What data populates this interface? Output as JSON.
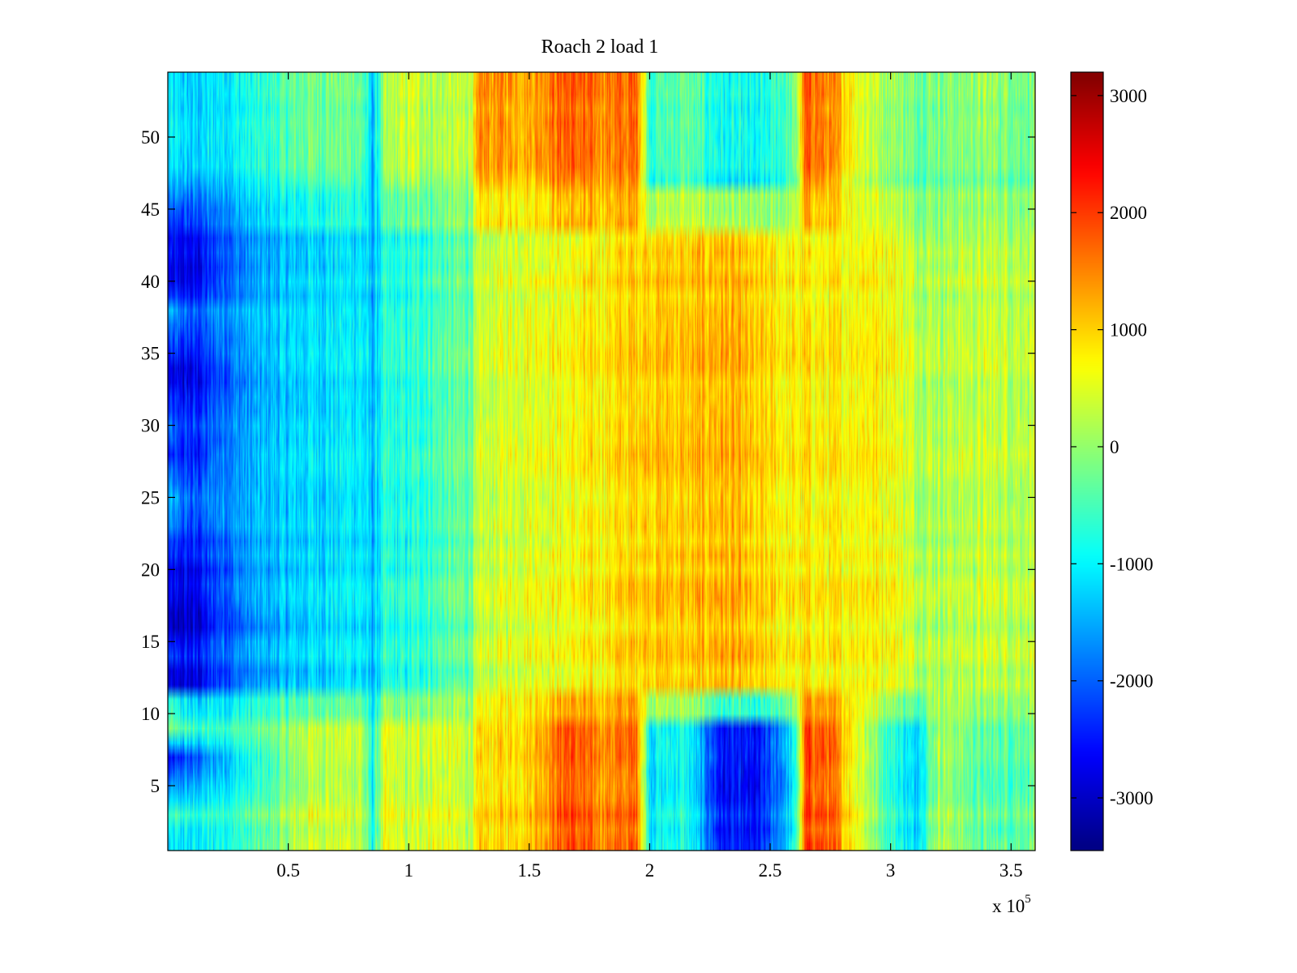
{
  "chart_data": {
    "type": "heatmap",
    "title": "Roach 2 load 1",
    "xlabel": "",
    "ylabel": "",
    "x_exponent_label": "x 10",
    "x_exponent": "5",
    "x_scale_factor": 100000,
    "xlim": [
      0,
      360000
    ],
    "ylim": [
      0.5,
      54.5
    ],
    "x_ticks": [
      50000,
      100000,
      150000,
      200000,
      250000,
      300000,
      350000
    ],
    "x_tick_labels": [
      "0.5",
      "1",
      "1.5",
      "2",
      "2.5",
      "3",
      "3.5"
    ],
    "y_ticks": [
      5,
      10,
      15,
      20,
      25,
      30,
      35,
      40,
      45,
      50
    ],
    "y_tick_labels": [
      "5",
      "10",
      "15",
      "20",
      "25",
      "30",
      "35",
      "40",
      "45",
      "50"
    ],
    "rows": 54,
    "colormap": "jet",
    "clim": [
      -3450,
      3200
    ],
    "colorbar_ticks": [
      3000,
      2000,
      1000,
      0,
      -1000,
      -2000,
      -3000
    ],
    "colorbar_tick_labels": [
      "3000",
      "2000",
      "1000",
      "0",
      "-1000",
      "-2000",
      "-3000"
    ],
    "grid": false,
    "legend": "none",
    "column_profile": {
      "x": [
        0,
        10000,
        20000,
        40000,
        60000,
        80000,
        85000,
        90000,
        100000,
        110000,
        125000,
        130000,
        150000,
        165000,
        180000,
        195000,
        200000,
        215000,
        230000,
        245000,
        260000,
        265000,
        275000,
        290000,
        300000,
        310000,
        320000,
        340000,
        360000
      ],
      "lower_band": [
        -500,
        -1000,
        -700,
        -200,
        500,
        400,
        -800,
        600,
        300,
        600,
        300,
        900,
        1100,
        1900,
        1500,
        1700,
        -1000,
        -800,
        -2500,
        -2600,
        -1000,
        2000,
        1700,
        300,
        -600,
        -1200,
        200,
        -400,
        -200
      ],
      "upper_band": [
        -2500,
        -2800,
        -1700,
        -1300,
        -1100,
        -1000,
        -1400,
        -800,
        -800,
        -500,
        -300,
        300,
        600,
        600,
        800,
        1000,
        1100,
        1000,
        1200,
        900,
        700,
        800,
        700,
        800,
        700,
        300,
        200,
        300,
        300
      ],
      "top_band": [
        -1000,
        -1500,
        -1100,
        -700,
        -200,
        -300,
        -1500,
        0,
        300,
        100,
        200,
        1300,
        1200,
        1700,
        1400,
        1600,
        -700,
        -400,
        -1000,
        -1100,
        -400,
        1700,
        1300,
        300,
        0,
        -300,
        -200,
        -100,
        -300
      ]
    },
    "row_profile": {
      "y": [
        1,
        3,
        5,
        7,
        8,
        9,
        10,
        11,
        12,
        14,
        17,
        20,
        25,
        28,
        30,
        34,
        38,
        40,
        44,
        47,
        50,
        54
      ],
      "left_value": [
        -1200,
        -800,
        -1600,
        -2800,
        -1400,
        -200,
        -600,
        -900,
        -3000,
        -2500,
        -3200,
        -2700,
        -1400,
        -2600,
        -2000,
        -3000,
        -1500,
        -3000,
        -2400,
        -1400,
        -1200,
        -1400
      ]
    }
  }
}
